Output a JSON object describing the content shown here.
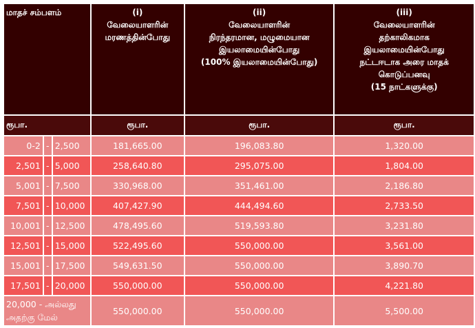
{
  "header": {
    "col0": "மாதச் சம்பளம்",
    "col1": {
      "num": "(i)",
      "lines": [
        "வேலையாளரின்",
        "மரணத்தின்போது"
      ]
    },
    "col2": {
      "num": "(ii)",
      "lines": [
        "வேலையாளரின்",
        "நிரந்தரமான, மழுமையான",
        "இயலாமையின்போது",
        "(100% இயலாமையின்போது)"
      ]
    },
    "col3": {
      "num": "(iii)",
      "lines": [
        "வேலையாளரின்",
        "தற்காலிகமாக",
        "இயலாமையின்போது",
        "நட்டஈடாக அரை மாதக்",
        "கொடுப்பனவு",
        "(15 நாட்களுக்கு)"
      ]
    }
  },
  "units": [
    "ரூபா.",
    "ரூபா.",
    "ரூபா.",
    "ரூபா."
  ],
  "rows": [
    {
      "lo": "0-2",
      "dash": "-",
      "hi": "2,500",
      "c1": "181,665.00",
      "c2": "196,083.80",
      "c3": "1,320.00"
    },
    {
      "lo": "2,501",
      "dash": "-",
      "hi": "5,000",
      "c1": "258,640.80",
      "c2": "295,075.00",
      "c3": "1,804.00"
    },
    {
      "lo": "5,001",
      "dash": "-",
      "hi": "7,500",
      "c1": "330,968.00",
      "c2": "351,461.00",
      "c3": "2,186.80"
    },
    {
      "lo": "7,501",
      "dash": "-",
      "hi": "10,000",
      "c1": "407,427.90",
      "c2": "444,494.60",
      "c3": "2,733.50"
    },
    {
      "lo": "10,001",
      "dash": "-",
      "hi": "12,500",
      "c1": "478,495.60",
      "c2": "519,593.80",
      "c3": "3,231.80"
    },
    {
      "lo": "12,501",
      "dash": "-",
      "hi": "15,000",
      "c1": "522,495.60",
      "c2": "550,000.00",
      "c3": "3,561.00"
    },
    {
      "lo": "15,001",
      "dash": "-",
      "hi": "17,500",
      "c1": "549,631.50",
      "c2": "550,000.00",
      "c3": "3,890.70"
    },
    {
      "lo": "17,501",
      "dash": "-",
      "hi": "20,000",
      "c1": "550,000.00",
      "c2": "550,000.00",
      "c3": "4,221.80"
    }
  ],
  "last_row": {
    "label_line1": "20,000 - அல்லது",
    "label_line2": "அதற்கு மேல்",
    "c1": "550,000.00",
    "c2": "550,000.00",
    "c3": "5,500.00"
  },
  "colors": {
    "header_bg": "#330000",
    "unit_bg": "#4a0a0a",
    "row_light": "#e98787",
    "row_dark": "#f15656",
    "text": "#ffffff"
  }
}
